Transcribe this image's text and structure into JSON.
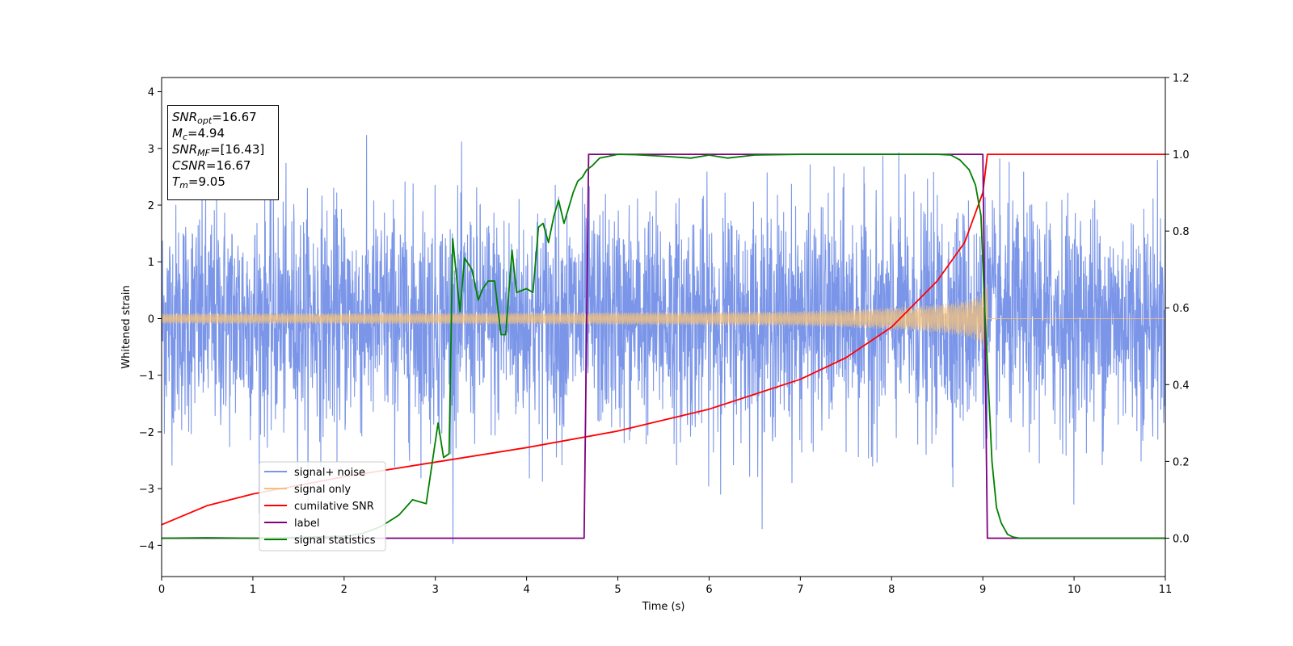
{
  "chart_data": {
    "type": "line",
    "xlabel": "Time (s)",
    "ylabel": "Whitened strain",
    "xlim": [
      0,
      11
    ],
    "ylim": [
      -4.55,
      4.25
    ],
    "y2lim": [
      -0.1,
      1.2
    ],
    "x_ticks": [
      "0",
      "1",
      "2",
      "3",
      "4",
      "5",
      "6",
      "7",
      "8",
      "9",
      "10",
      "11"
    ],
    "y_ticks": [
      "4",
      "3",
      "2",
      "1",
      "0",
      "−1",
      "−2",
      "−3",
      "−4"
    ],
    "y2_ticks": [
      "1.2",
      "1.0",
      "0.8",
      "0.6",
      "0.4",
      "0.2",
      "0.0"
    ],
    "grid": false,
    "legend_position": "lower-left",
    "annotation": {
      "snr_opt": {
        "name": "SNR",
        "sub": "opt",
        "value": "=16.67"
      },
      "mc": {
        "name": "M",
        "sub": "c",
        "value": "=4.94"
      },
      "snr_mf": {
        "name": "SNR",
        "sub": "MF",
        "value": "=[16.43]"
      },
      "csnr": {
        "name": "CSNR",
        "value": "=16.67"
      },
      "tm": {
        "name": "T",
        "sub": "m",
        "value": "=9.05"
      }
    },
    "series": [
      {
        "name": "signal+ noise",
        "color": "#7b96e8",
        "axis": "left",
        "description_values": {
          "noise_amplitude_typical": 1.9,
          "min": -4.15,
          "max": 3.85
        }
      },
      {
        "name": "signal only",
        "color": "#f5c17a",
        "axis": "left",
        "description_values": {
          "amp_start": 0.09,
          "amp_end": 1.0,
          "merger_time": 9.05
        }
      },
      {
        "name": "cumilative SNR",
        "color": "#ff0000",
        "axis": "right",
        "x": [
          0,
          0.5,
          1,
          2,
          3,
          4,
          5,
          6,
          7,
          7.5,
          8,
          8.5,
          8.8,
          9.0,
          9.05,
          11
        ],
        "y": [
          0.035,
          0.085,
          0.115,
          0.16,
          0.198,
          0.236,
          0.279,
          0.336,
          0.414,
          0.47,
          0.55,
          0.67,
          0.77,
          0.9,
          1.0,
          1.0
        ]
      },
      {
        "name": "label",
        "color": "#800080",
        "axis": "right",
        "x": [
          0,
          4.63,
          4.68,
          9.0,
          9.05,
          11
        ],
        "y": [
          0,
          0,
          1,
          1,
          0,
          0
        ]
      },
      {
        "name": "signal statistics",
        "color": "#008000",
        "axis": "right",
        "x": [
          0,
          0.5,
          1,
          1.5,
          2,
          2.2,
          2.4,
          2.6,
          2.75,
          2.9,
          2.98,
          3.03,
          3.09,
          3.15,
          3.19,
          3.27,
          3.32,
          3.4,
          3.47,
          3.52,
          3.58,
          3.65,
          3.72,
          3.77,
          3.84,
          3.89,
          4.0,
          4.07,
          4.13,
          4.18,
          4.24,
          4.3,
          4.35,
          4.41,
          4.46,
          4.51,
          4.56,
          4.61,
          4.66,
          4.72,
          4.8,
          4.9,
          5.0,
          5.2,
          5.5,
          5.8,
          6.0,
          6.2,
          6.5,
          7.0,
          7.5,
          8.0,
          8.5,
          8.65,
          8.75,
          8.85,
          8.92,
          8.98,
          9.02,
          9.06,
          9.1,
          9.15,
          9.2,
          9.27,
          9.33,
          9.4,
          9.6,
          10,
          11
        ],
        "y": [
          0.0,
          0.001,
          0.0,
          0.002,
          0.005,
          0.012,
          0.03,
          0.06,
          0.1,
          0.09,
          0.22,
          0.3,
          0.21,
          0.22,
          0.78,
          0.59,
          0.73,
          0.7,
          0.62,
          0.65,
          0.67,
          0.67,
          0.53,
          0.53,
          0.75,
          0.64,
          0.65,
          0.64,
          0.81,
          0.82,
          0.77,
          0.84,
          0.88,
          0.82,
          0.86,
          0.9,
          0.93,
          0.94,
          0.96,
          0.97,
          0.99,
          0.995,
          1.0,
          0.999,
          0.995,
          0.99,
          0.998,
          0.99,
          0.998,
          1.0,
          1.0,
          1.0,
          1.0,
          0.998,
          0.985,
          0.96,
          0.92,
          0.84,
          0.6,
          0.4,
          0.2,
          0.08,
          0.04,
          0.01,
          0.003,
          0.0,
          0.0,
          0.0,
          0.0
        ]
      }
    ]
  }
}
